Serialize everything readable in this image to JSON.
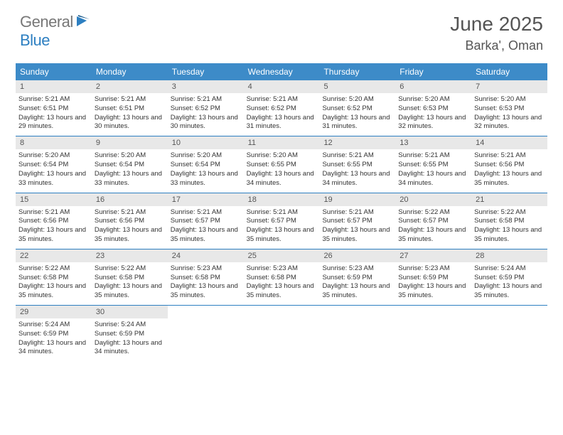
{
  "logo": {
    "text1": "General",
    "text2": "Blue"
  },
  "title": "June 2025",
  "location": "Barka', Oman",
  "day_headers": [
    "Sunday",
    "Monday",
    "Tuesday",
    "Wednesday",
    "Thursday",
    "Friday",
    "Saturday"
  ],
  "colors": {
    "header_blue": "#3d8bc8",
    "border_blue": "#2d7fc1",
    "daynum_bg": "#e8e8e8",
    "text_gray": "#555"
  },
  "weeks": [
    [
      {
        "day": "1",
        "sunrise": "Sunrise: 5:21 AM",
        "sunset": "Sunset: 6:51 PM",
        "daylight": "Daylight: 13 hours and 29 minutes."
      },
      {
        "day": "2",
        "sunrise": "Sunrise: 5:21 AM",
        "sunset": "Sunset: 6:51 PM",
        "daylight": "Daylight: 13 hours and 30 minutes."
      },
      {
        "day": "3",
        "sunrise": "Sunrise: 5:21 AM",
        "sunset": "Sunset: 6:52 PM",
        "daylight": "Daylight: 13 hours and 30 minutes."
      },
      {
        "day": "4",
        "sunrise": "Sunrise: 5:21 AM",
        "sunset": "Sunset: 6:52 PM",
        "daylight": "Daylight: 13 hours and 31 minutes."
      },
      {
        "day": "5",
        "sunrise": "Sunrise: 5:20 AM",
        "sunset": "Sunset: 6:52 PM",
        "daylight": "Daylight: 13 hours and 31 minutes."
      },
      {
        "day": "6",
        "sunrise": "Sunrise: 5:20 AM",
        "sunset": "Sunset: 6:53 PM",
        "daylight": "Daylight: 13 hours and 32 minutes."
      },
      {
        "day": "7",
        "sunrise": "Sunrise: 5:20 AM",
        "sunset": "Sunset: 6:53 PM",
        "daylight": "Daylight: 13 hours and 32 minutes."
      }
    ],
    [
      {
        "day": "8",
        "sunrise": "Sunrise: 5:20 AM",
        "sunset": "Sunset: 6:54 PM",
        "daylight": "Daylight: 13 hours and 33 minutes."
      },
      {
        "day": "9",
        "sunrise": "Sunrise: 5:20 AM",
        "sunset": "Sunset: 6:54 PM",
        "daylight": "Daylight: 13 hours and 33 minutes."
      },
      {
        "day": "10",
        "sunrise": "Sunrise: 5:20 AM",
        "sunset": "Sunset: 6:54 PM",
        "daylight": "Daylight: 13 hours and 33 minutes."
      },
      {
        "day": "11",
        "sunrise": "Sunrise: 5:20 AM",
        "sunset": "Sunset: 6:55 PM",
        "daylight": "Daylight: 13 hours and 34 minutes."
      },
      {
        "day": "12",
        "sunrise": "Sunrise: 5:21 AM",
        "sunset": "Sunset: 6:55 PM",
        "daylight": "Daylight: 13 hours and 34 minutes."
      },
      {
        "day": "13",
        "sunrise": "Sunrise: 5:21 AM",
        "sunset": "Sunset: 6:55 PM",
        "daylight": "Daylight: 13 hours and 34 minutes."
      },
      {
        "day": "14",
        "sunrise": "Sunrise: 5:21 AM",
        "sunset": "Sunset: 6:56 PM",
        "daylight": "Daylight: 13 hours and 35 minutes."
      }
    ],
    [
      {
        "day": "15",
        "sunrise": "Sunrise: 5:21 AM",
        "sunset": "Sunset: 6:56 PM",
        "daylight": "Daylight: 13 hours and 35 minutes."
      },
      {
        "day": "16",
        "sunrise": "Sunrise: 5:21 AM",
        "sunset": "Sunset: 6:56 PM",
        "daylight": "Daylight: 13 hours and 35 minutes."
      },
      {
        "day": "17",
        "sunrise": "Sunrise: 5:21 AM",
        "sunset": "Sunset: 6:57 PM",
        "daylight": "Daylight: 13 hours and 35 minutes."
      },
      {
        "day": "18",
        "sunrise": "Sunrise: 5:21 AM",
        "sunset": "Sunset: 6:57 PM",
        "daylight": "Daylight: 13 hours and 35 minutes."
      },
      {
        "day": "19",
        "sunrise": "Sunrise: 5:21 AM",
        "sunset": "Sunset: 6:57 PM",
        "daylight": "Daylight: 13 hours and 35 minutes."
      },
      {
        "day": "20",
        "sunrise": "Sunrise: 5:22 AM",
        "sunset": "Sunset: 6:57 PM",
        "daylight": "Daylight: 13 hours and 35 minutes."
      },
      {
        "day": "21",
        "sunrise": "Sunrise: 5:22 AM",
        "sunset": "Sunset: 6:58 PM",
        "daylight": "Daylight: 13 hours and 35 minutes."
      }
    ],
    [
      {
        "day": "22",
        "sunrise": "Sunrise: 5:22 AM",
        "sunset": "Sunset: 6:58 PM",
        "daylight": "Daylight: 13 hours and 35 minutes."
      },
      {
        "day": "23",
        "sunrise": "Sunrise: 5:22 AM",
        "sunset": "Sunset: 6:58 PM",
        "daylight": "Daylight: 13 hours and 35 minutes."
      },
      {
        "day": "24",
        "sunrise": "Sunrise: 5:23 AM",
        "sunset": "Sunset: 6:58 PM",
        "daylight": "Daylight: 13 hours and 35 minutes."
      },
      {
        "day": "25",
        "sunrise": "Sunrise: 5:23 AM",
        "sunset": "Sunset: 6:58 PM",
        "daylight": "Daylight: 13 hours and 35 minutes."
      },
      {
        "day": "26",
        "sunrise": "Sunrise: 5:23 AM",
        "sunset": "Sunset: 6:59 PM",
        "daylight": "Daylight: 13 hours and 35 minutes."
      },
      {
        "day": "27",
        "sunrise": "Sunrise: 5:23 AM",
        "sunset": "Sunset: 6:59 PM",
        "daylight": "Daylight: 13 hours and 35 minutes."
      },
      {
        "day": "28",
        "sunrise": "Sunrise: 5:24 AM",
        "sunset": "Sunset: 6:59 PM",
        "daylight": "Daylight: 13 hours and 35 minutes."
      }
    ],
    [
      {
        "day": "29",
        "sunrise": "Sunrise: 5:24 AM",
        "sunset": "Sunset: 6:59 PM",
        "daylight": "Daylight: 13 hours and 34 minutes."
      },
      {
        "day": "30",
        "sunrise": "Sunrise: 5:24 AM",
        "sunset": "Sunset: 6:59 PM",
        "daylight": "Daylight: 13 hours and 34 minutes."
      },
      null,
      null,
      null,
      null,
      null
    ]
  ]
}
